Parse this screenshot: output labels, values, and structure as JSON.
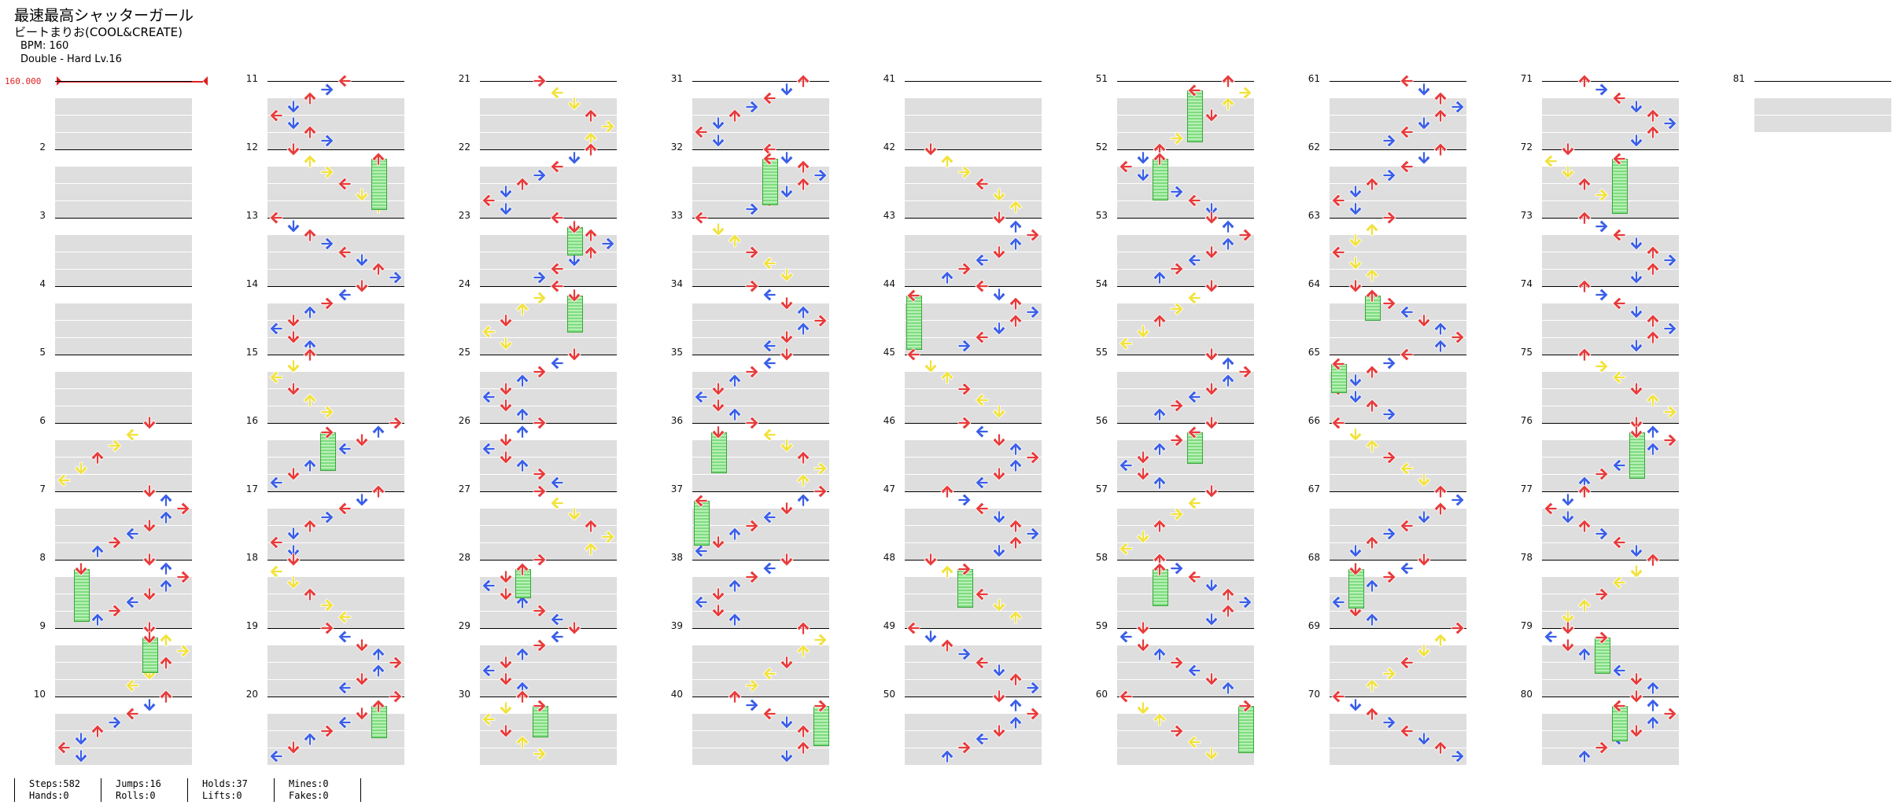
{
  "song": {
    "title": "最速最高シャッターガール",
    "artist": "ビートまりお(COOL&CREATE)",
    "bpm_line": "BPM: 160",
    "difficulty_line": "Double - Hard  Lv.16"
  },
  "bpm_marker": {
    "value": "160.000"
  },
  "chart": {
    "lanes": 8,
    "measures": [
      1,
      2,
      3,
      4,
      5,
      6,
      7,
      8,
      9,
      10,
      11,
      12,
      13,
      14,
      15,
      16,
      17,
      18,
      19,
      20,
      21,
      22,
      23,
      24,
      25,
      26,
      27,
      28,
      29,
      30,
      31,
      32,
      33,
      34,
      35,
      36,
      37,
      38,
      39,
      40,
      41,
      42,
      43,
      44,
      45,
      46,
      47,
      48,
      49,
      50,
      51,
      52,
      53,
      54,
      55,
      56,
      57,
      58,
      59,
      60,
      61,
      62,
      63,
      64,
      65,
      66,
      67,
      68,
      69,
      70,
      71,
      72,
      73,
      74,
      75,
      76,
      77,
      78,
      79,
      80,
      81
    ],
    "measure_labels": [
      "",
      "2",
      "3",
      "4",
      "5",
      "6",
      "7",
      "8",
      "9",
      "10",
      "11",
      "12",
      "13",
      "14",
      "15",
      "16",
      "17",
      "18",
      "19",
      "20",
      "21",
      "22",
      "23",
      "24",
      "25",
      "26",
      "27",
      "28",
      "29",
      "30",
      "31",
      "32",
      "33",
      "34",
      "35",
      "36",
      "37",
      "38",
      "39",
      "40",
      "41",
      "42",
      "43",
      "44",
      "45",
      "46",
      "47",
      "48",
      "49",
      "50",
      "51",
      "52",
      "53",
      "54",
      "55",
      "56",
      "57",
      "58",
      "59",
      "60",
      "61",
      "62",
      "63",
      "64",
      "65",
      "66",
      "67",
      "68",
      "69",
      "70",
      "71",
      "72",
      "73",
      "74",
      "75",
      "76",
      "77",
      "78",
      "79",
      "80",
      "81"
    ],
    "arrow_colors": {
      "quarter": "#e83a3a",
      "eighth": "#3a5ee8",
      "sixteenth": "#f2e23a",
      "hold": "#7fdc7f"
    }
  },
  "stats": {
    "steps": "Steps:582",
    "hands": "Hands:0",
    "jumps": "Jumps:16",
    "rolls": "Rolls:0",
    "holds": "Holds:37",
    "lifts": "Lifts:0",
    "mines": "Mines:0",
    "fakes": "Fakes:0"
  }
}
